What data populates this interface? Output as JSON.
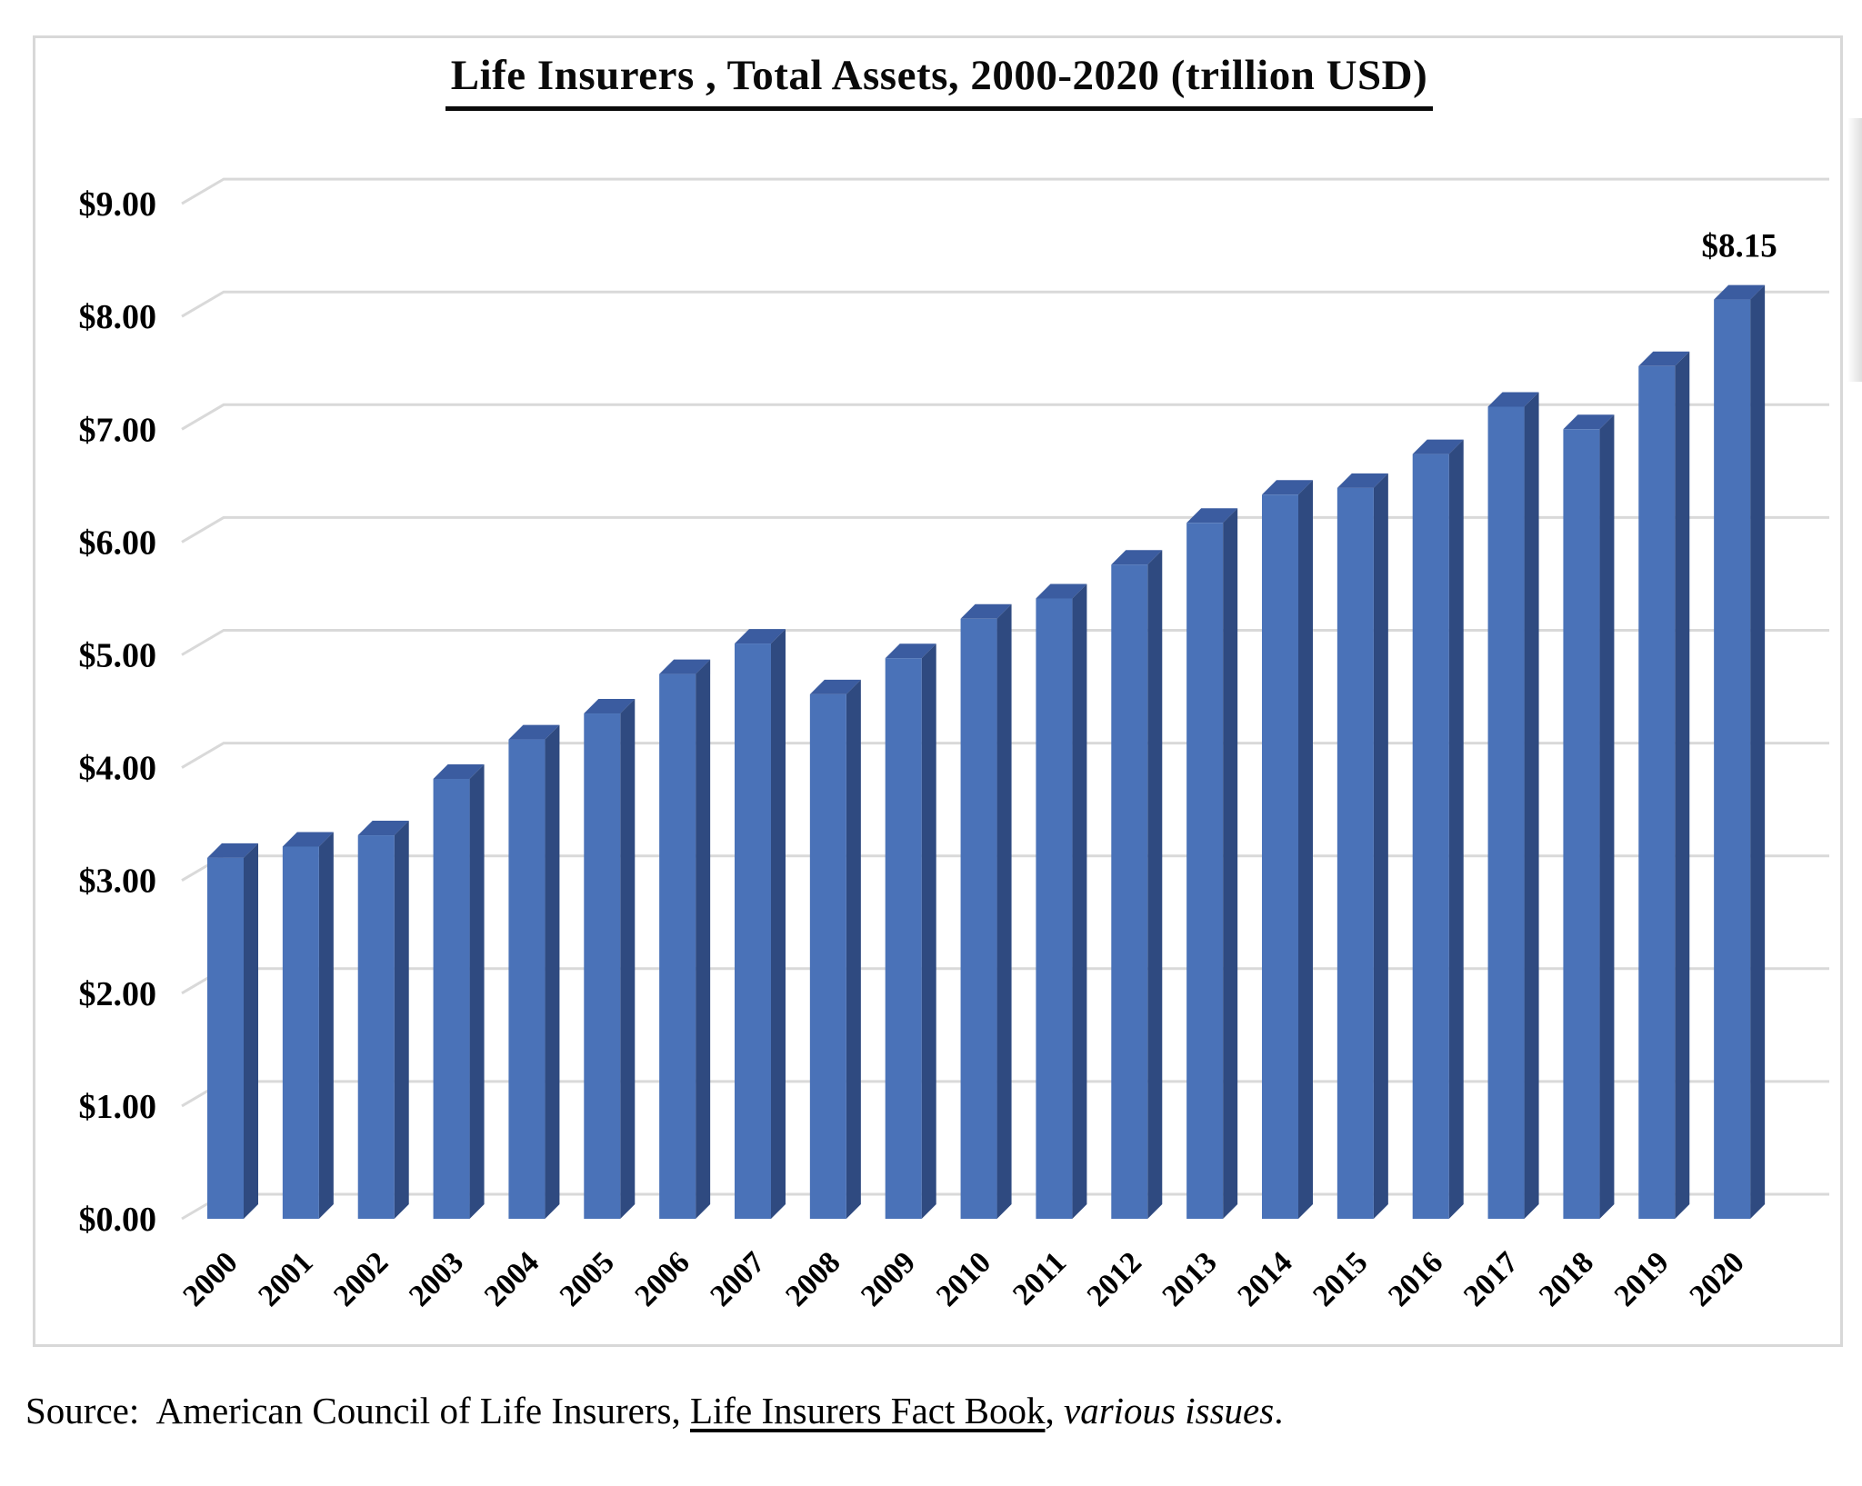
{
  "title": "Life Insurers , Total Assets, 2000-2020 (trillion USD)",
  "source": {
    "prefix": "Source:  American Council of Life Insurers, ",
    "underlined": "Life Insurers Fact Book",
    "separator": ", ",
    "italic": "various issues",
    "suffix": "."
  },
  "chart_data": {
    "type": "bar",
    "style": "3d-column",
    "title": "Life Insurers , Total Assets, 2000-2020 (trillion USD)",
    "series_name": "Total Assets (trillion USD)",
    "categories": [
      "2000",
      "2001",
      "2002",
      "2003",
      "2004",
      "2005",
      "2006",
      "2007",
      "2008",
      "2009",
      "2010",
      "2011",
      "2012",
      "2013",
      "2014",
      "2015",
      "2016",
      "2017",
      "2018",
      "2019",
      "2020"
    ],
    "values": [
      3.2,
      3.3,
      3.4,
      3.9,
      4.25,
      4.48,
      4.83,
      5.1,
      4.65,
      4.97,
      5.32,
      5.5,
      5.8,
      6.17,
      6.42,
      6.48,
      6.78,
      7.2,
      7.0,
      7.56,
      8.15
    ],
    "xlabel": "",
    "ylabel": "",
    "ylim": [
      0,
      9
    ],
    "grid": true,
    "legend": "none",
    "y_ticks": [
      {
        "value": 9,
        "label": "$9.00"
      },
      {
        "value": 8,
        "label": "$8.00"
      },
      {
        "value": 7,
        "label": "$7.00"
      },
      {
        "value": 6,
        "label": "$6.00"
      },
      {
        "value": 5,
        "label": "$5.00"
      },
      {
        "value": 4,
        "label": "$4.00"
      },
      {
        "value": 3,
        "label": "$3.00"
      },
      {
        "value": 2,
        "label": "$2.00"
      },
      {
        "value": 1,
        "label": "$1.00"
      },
      {
        "value": 0,
        "label": "$0.00"
      }
    ],
    "data_label": {
      "category": "2020",
      "text": "$8.15"
    },
    "colors": {
      "bar_front": "#4a72b8",
      "bar_top": "#3b5ca0",
      "bar_side": "#2f4a80",
      "gridline": "#d9d9d9",
      "text": "#000000",
      "frame_border": "#d8d8d8"
    }
  }
}
